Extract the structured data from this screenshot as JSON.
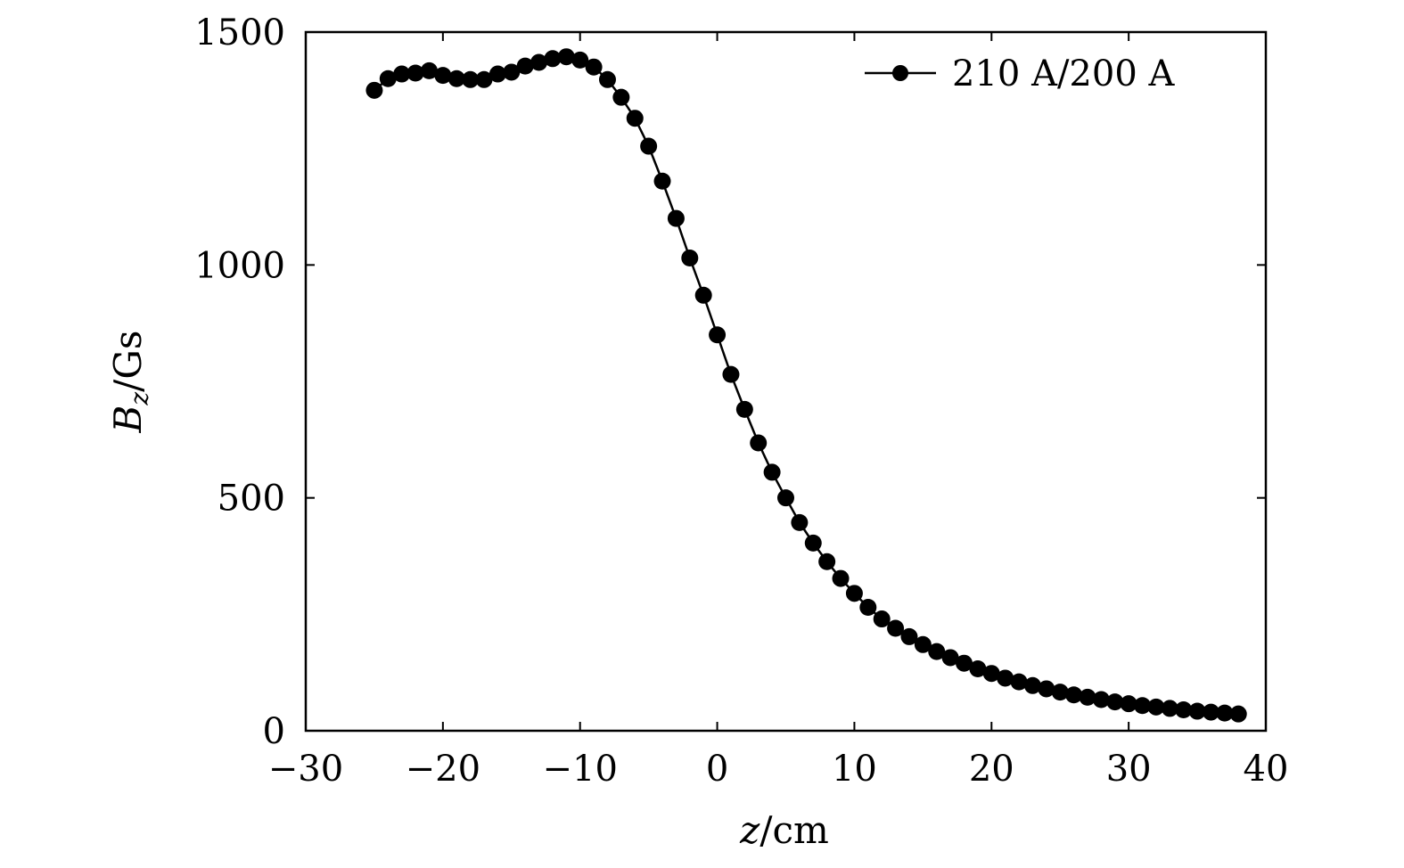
{
  "chart_data": {
    "type": "line",
    "title": "",
    "xlabel": {
      "var": "z",
      "unit": "/cm"
    },
    "ylabel": {
      "var": "B",
      "sub": "z",
      "unit": "/Gs"
    },
    "xlim": [
      -30,
      40
    ],
    "ylim": [
      0,
      1500
    ],
    "xticks": [
      -30,
      -20,
      -10,
      0,
      10,
      20,
      30,
      40
    ],
    "yticks": [
      0,
      500,
      1000,
      1500
    ],
    "xtick_labels": [
      "−30",
      "−20",
      "−10",
      "0",
      "10",
      "20",
      "30",
      "40"
    ],
    "ytick_labels": [
      "0",
      "500",
      "1000",
      "1500"
    ],
    "grid": false,
    "legend_position": "top-right",
    "series": [
      {
        "name": "210 A/200 A",
        "marker": "circle",
        "color": "#000000",
        "x": [
          -25,
          -24,
          -23,
          -22,
          -21,
          -20,
          -19,
          -18,
          -17,
          -16,
          -15,
          -14,
          -13,
          -12,
          -11,
          -10,
          -9,
          -8,
          -7,
          -6,
          -5,
          -4,
          -3,
          -2,
          -1,
          0,
          1,
          2,
          3,
          4,
          5,
          6,
          7,
          8,
          9,
          10,
          11,
          12,
          13,
          14,
          15,
          16,
          17,
          18,
          19,
          20,
          21,
          22,
          23,
          24,
          25,
          26,
          27,
          28,
          29,
          30,
          31,
          32,
          33,
          34,
          35,
          36,
          37,
          38
        ],
        "y": [
          1375,
          1400,
          1410,
          1412,
          1417,
          1407,
          1400,
          1398,
          1398,
          1410,
          1414,
          1427,
          1435,
          1443,
          1447,
          1440,
          1425,
          1398,
          1360,
          1315,
          1255,
          1180,
          1100,
          1015,
          935,
          850,
          765,
          690,
          618,
          555,
          500,
          447,
          403,
          363,
          327,
          295,
          265,
          240,
          220,
          202,
          185,
          170,
          157,
          145,
          133,
          123,
          113,
          105,
          97,
          90,
          83,
          77,
          72,
          67,
          62,
          58,
          54,
          51,
          48,
          45,
          42,
          40,
          38,
          36
        ]
      }
    ]
  }
}
